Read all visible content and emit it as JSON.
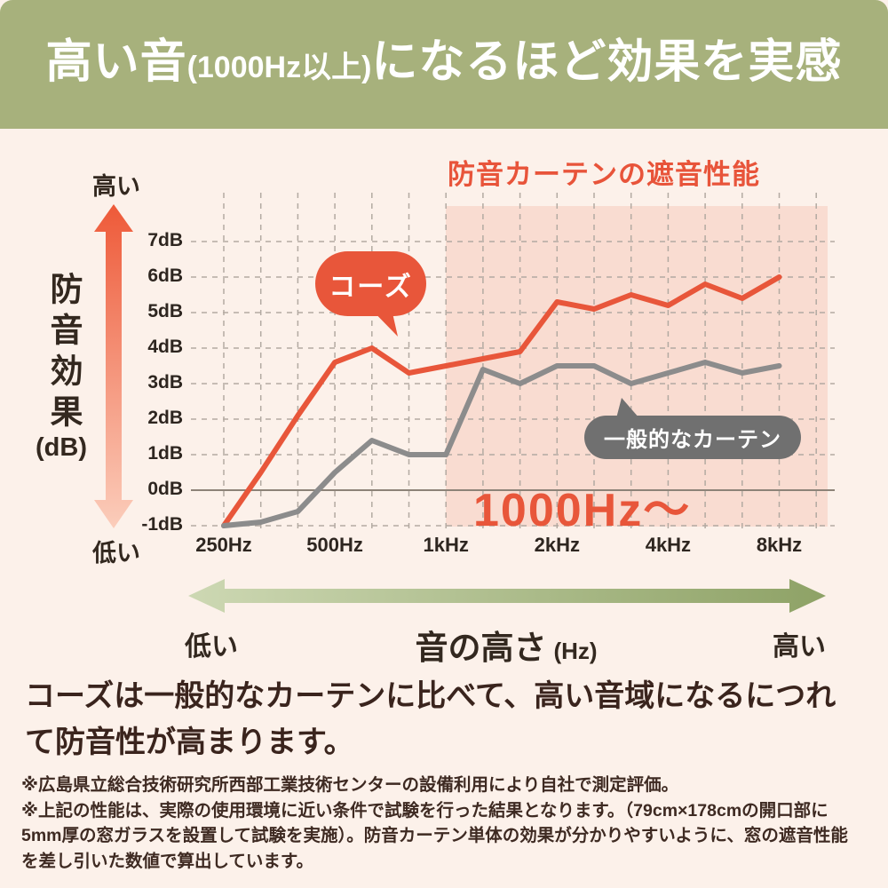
{
  "banner": {
    "part1": "高い音",
    "part2": "(1000Hz以上)",
    "part3": "になるほど効果を実感"
  },
  "chart": {
    "title": "防音カーテンの遮音性能",
    "y_axis": {
      "title": "防音効果",
      "unit": "(dB)",
      "top_label": "高い",
      "bottom_label": "低い"
    },
    "x_axis": {
      "title": "音の高さ",
      "unit": "(Hz)",
      "left_label": "低い",
      "right_label": "高い"
    },
    "series_labels": {
      "kozu": "コーズ",
      "general": "一般的なカーテン"
    },
    "highlight_label": "1000Hz〜"
  },
  "chart_data": {
    "type": "line",
    "title": "防音カーテンの遮音性能",
    "xlabel": "音の高さ (Hz)",
    "ylabel": "防音効果 (dB)",
    "ylim": [
      -1,
      7
    ],
    "grid": "dashed",
    "categories": [
      250,
      315,
      400,
      500,
      630,
      800,
      1000,
      1250,
      1600,
      2000,
      2500,
      3150,
      4000,
      5000,
      6300,
      8000
    ],
    "series": [
      {
        "name": "コーズ",
        "color": "#e8563a",
        "values": [
          -1,
          0.5,
          2.1,
          3.6,
          4.0,
          3.3,
          3.5,
          3.7,
          3.9,
          5.3,
          5.1,
          5.5,
          5.2,
          5.8,
          5.4,
          6.0
        ]
      },
      {
        "name": "一般的なカーテン",
        "color": "#8c8c8c",
        "values": [
          -1,
          -0.9,
          -0.6,
          0.5,
          1.4,
          1.0,
          1.0,
          3.4,
          3.0,
          3.5,
          3.5,
          3.0,
          3.3,
          3.6,
          3.3,
          3.5
        ]
      }
    ],
    "x_tick_labels": [
      "250Hz",
      "500Hz",
      "1kHz",
      "2kHz",
      "4kHz",
      "8kHz"
    ],
    "y_tick_labels": [
      "7dB",
      "6dB",
      "5dB",
      "4dB",
      "3dB",
      "2dB",
      "1dB",
      "0dB",
      "-1dB"
    ],
    "highlight_region": {
      "from_hz": 1000,
      "to_hz": 8000,
      "label": "1000Hz〜",
      "color": "#f9dcd1"
    }
  },
  "colors": {
    "accent": "#e8563a",
    "banner_bg": "#a7b17c",
    "page_bg": "#fcf1ea",
    "highlight_bg": "#f9dcd1",
    "gray_line": "#8c8c8c",
    "pill_bg": "#707070",
    "gridline": "#b3aaa2",
    "zero_line": "#8d8378",
    "text_dark": "#33281f"
  },
  "body": {
    "line1": "コーズは一般的なカーテンに比べて、高い音域になるにつれ",
    "line2": "て防音性が高まります。"
  },
  "footnotes": [
    "※広島県立総合技術研究所西部工業技術センターの設備利用により自社で測定評価。",
    "※上記の性能は、実際の使用環境に近い条件で試験を行った結果となります。（79cm×178cmの開口部に",
    "5mm厚の窓ガラスを設置して試験を実施）。防音カーテン単体の効果が分かりやすいように、窓の遮音性能",
    "を差し引いた数値で算出しています。"
  ]
}
